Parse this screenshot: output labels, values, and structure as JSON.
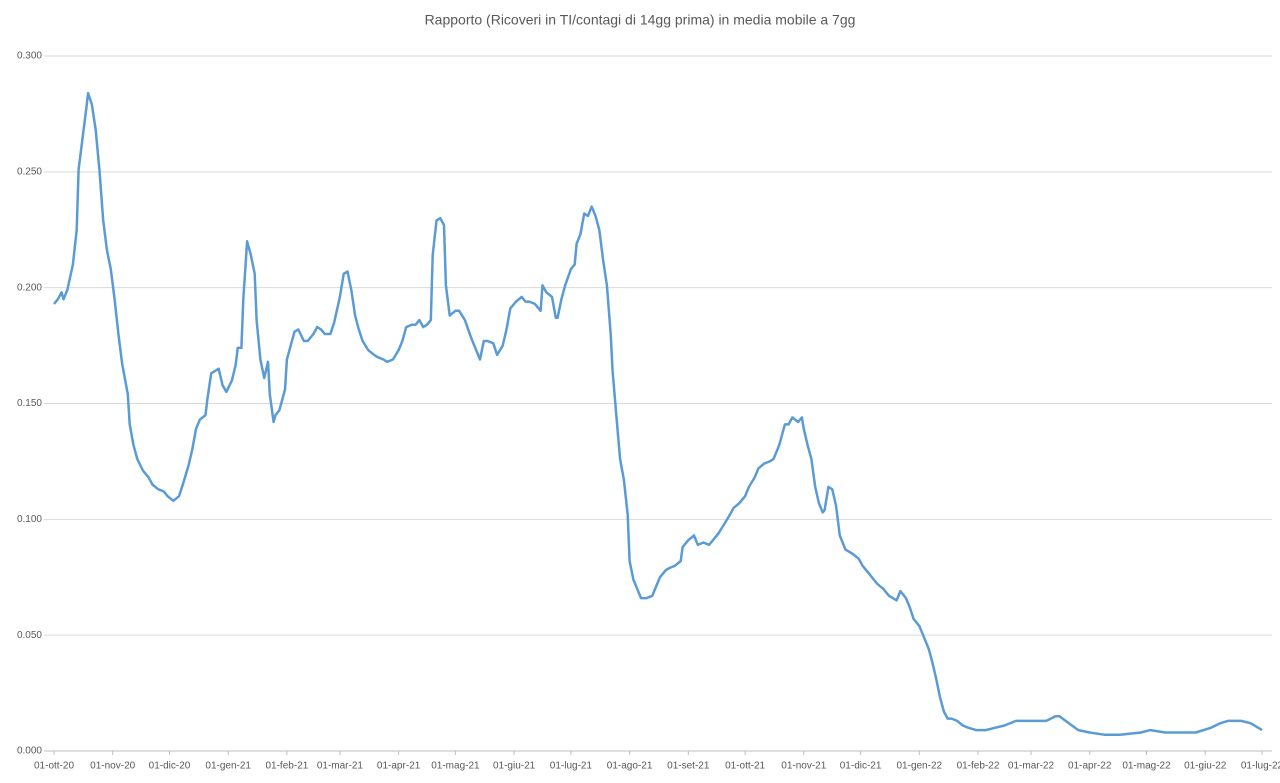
{
  "chart_data": {
    "type": "line",
    "title": "Rapporto (Ricoveri in TI/contagi di 14gg prima) in media mobile a 7gg",
    "x": [
      "2020-10-01",
      "2020-10-03",
      "2020-10-05",
      "2020-10-06",
      "2020-10-08",
      "2020-10-11",
      "2020-10-13",
      "2020-10-14",
      "2020-10-16",
      "2020-10-18",
      "2020-10-19",
      "2020-10-21",
      "2020-10-23",
      "2020-10-25",
      "2020-10-27",
      "2020-10-29",
      "2020-10-31",
      "2020-11-02",
      "2020-11-04",
      "2020-11-06",
      "2020-11-09",
      "2020-11-10",
      "2020-11-12",
      "2020-11-14",
      "2020-11-17",
      "2020-11-20",
      "2020-11-22",
      "2020-11-25",
      "2020-11-28",
      "2020-11-30",
      "2020-12-03",
      "2020-12-06",
      "2020-12-08",
      "2020-12-11",
      "2020-12-13",
      "2020-12-15",
      "2020-12-17",
      "2020-12-20",
      "2020-12-21",
      "2020-12-23",
      "2020-12-25",
      "2020-12-27",
      "2020-12-29",
      "2020-12-31",
      "2021-01-03",
      "2021-01-05",
      "2021-01-06",
      "2021-01-08",
      "2021-01-09",
      "2021-01-11",
      "2021-01-13",
      "2021-01-15",
      "2021-01-16",
      "2021-01-18",
      "2021-01-20",
      "2021-01-22",
      "2021-01-23",
      "2021-01-25",
      "2021-01-26",
      "2021-01-28",
      "2021-01-31",
      "2021-02-01",
      "2021-02-03",
      "2021-02-05",
      "2021-02-07",
      "2021-02-10",
      "2021-02-12",
      "2021-02-15",
      "2021-02-17",
      "2021-02-19",
      "2021-02-21",
      "2021-02-24",
      "2021-02-26",
      "2021-03-01",
      "2021-03-03",
      "2021-03-05",
      "2021-03-07",
      "2021-03-09",
      "2021-03-11",
      "2021-03-13",
      "2021-03-16",
      "2021-03-19",
      "2021-03-21",
      "2021-03-24",
      "2021-03-26",
      "2021-03-29",
      "2021-04-01",
      "2021-04-03",
      "2021-04-05",
      "2021-04-08",
      "2021-04-10",
      "2021-04-12",
      "2021-04-14",
      "2021-04-16",
      "2021-04-18",
      "2021-04-19",
      "2021-04-21",
      "2021-04-23",
      "2021-04-25",
      "2021-04-26",
      "2021-04-28",
      "2021-05-01",
      "2021-05-03",
      "2021-05-06",
      "2021-05-09",
      "2021-05-11",
      "2021-05-14",
      "2021-05-16",
      "2021-05-18",
      "2021-05-21",
      "2021-05-23",
      "2021-05-26",
      "2021-05-28",
      "2021-05-30",
      "2021-06-02",
      "2021-06-05",
      "2021-06-07",
      "2021-06-09",
      "2021-06-12",
      "2021-06-15",
      "2021-06-16",
      "2021-06-18",
      "2021-06-21",
      "2021-06-23",
      "2021-06-24",
      "2021-06-26",
      "2021-06-28",
      "2021-07-01",
      "2021-07-03",
      "2021-07-04",
      "2021-07-06",
      "2021-07-08",
      "2021-07-10",
      "2021-07-12",
      "2021-07-14",
      "2021-07-16",
      "2021-07-18",
      "2021-07-20",
      "2021-07-22",
      "2021-07-23",
      "2021-07-25",
      "2021-07-27",
      "2021-07-29",
      "2021-07-31",
      "2021-08-01",
      "2021-08-03",
      "2021-08-05",
      "2021-08-07",
      "2021-08-10",
      "2021-08-13",
      "2021-08-15",
      "2021-08-17",
      "2021-08-20",
      "2021-08-22",
      "2021-08-25",
      "2021-08-28",
      "2021-08-29",
      "2021-09-01",
      "2021-09-04",
      "2021-09-06",
      "2021-09-09",
      "2021-09-12",
      "2021-09-15",
      "2021-09-17",
      "2021-09-20",
      "2021-09-23",
      "2021-09-25",
      "2021-09-28",
      "2021-10-01",
      "2021-10-03",
      "2021-10-06",
      "2021-10-08",
      "2021-10-11",
      "2021-10-14",
      "2021-10-16",
      "2021-10-19",
      "2021-10-21",
      "2021-10-22",
      "2021-10-24",
      "2021-10-26",
      "2021-10-29",
      "2021-10-31",
      "2021-11-01",
      "2021-11-03",
      "2021-11-05",
      "2021-11-07",
      "2021-11-09",
      "2021-11-11",
      "2021-11-12",
      "2021-11-14",
      "2021-11-16",
      "2021-11-18",
      "2021-11-20",
      "2021-11-23",
      "2021-11-27",
      "2021-11-30",
      "2021-12-02",
      "2021-12-05",
      "2021-12-08",
      "2021-12-10",
      "2021-12-13",
      "2021-12-16",
      "2021-12-18",
      "2021-12-20",
      "2021-12-22",
      "2021-12-25",
      "2021-12-27",
      "2021-12-29",
      "2022-01-01",
      "2022-01-03",
      "2022-01-06",
      "2022-01-08",
      "2022-01-10",
      "2022-01-12",
      "2022-01-14",
      "2022-01-16",
      "2022-01-18",
      "2022-01-21",
      "2022-01-24",
      "2022-01-27",
      "2022-01-31",
      "2022-02-05",
      "2022-02-10",
      "2022-02-15",
      "2022-02-21",
      "2022-03-01",
      "2022-03-09",
      "2022-03-14",
      "2022-03-16",
      "2022-03-21",
      "2022-03-26",
      "2022-04-01",
      "2022-04-09",
      "2022-04-17",
      "2022-04-28",
      "2022-05-03",
      "2022-05-11",
      "2022-05-19",
      "2022-05-27",
      "2022-06-04",
      "2022-06-09",
      "2022-06-13",
      "2022-06-20",
      "2022-06-25",
      "2022-07-01"
    ],
    "values": [
      0.193,
      0.195,
      0.198,
      0.195,
      0.199,
      0.21,
      0.225,
      0.251,
      0.264,
      0.277,
      0.284,
      0.279,
      0.268,
      0.251,
      0.229,
      0.216,
      0.208,
      0.195,
      0.18,
      0.167,
      0.154,
      0.141,
      0.132,
      0.126,
      0.121,
      0.118,
      0.115,
      0.113,
      0.112,
      0.11,
      0.108,
      0.11,
      0.115,
      0.123,
      0.13,
      0.139,
      0.143,
      0.145,
      0.152,
      0.163,
      0.164,
      0.165,
      0.158,
      0.155,
      0.16,
      0.167,
      0.174,
      0.174,
      0.195,
      0.22,
      0.214,
      0.206,
      0.186,
      0.169,
      0.161,
      0.168,
      0.154,
      0.142,
      0.145,
      0.147,
      0.156,
      0.169,
      0.175,
      0.181,
      0.182,
      0.177,
      0.177,
      0.18,
      0.183,
      0.182,
      0.18,
      0.18,
      0.185,
      0.196,
      0.206,
      0.207,
      0.199,
      0.188,
      0.182,
      0.177,
      0.173,
      0.171,
      0.17,
      0.169,
      0.168,
      0.169,
      0.173,
      0.177,
      0.183,
      0.184,
      0.184,
      0.186,
      0.183,
      0.184,
      0.186,
      0.214,
      0.229,
      0.23,
      0.227,
      0.201,
      0.188,
      0.19,
      0.19,
      0.186,
      0.179,
      0.175,
      0.169,
      0.177,
      0.177,
      0.176,
      0.171,
      0.175,
      0.182,
      0.191,
      0.194,
      0.196,
      0.194,
      0.194,
      0.193,
      0.19,
      0.201,
      0.198,
      0.196,
      0.187,
      0.187,
      0.195,
      0.201,
      0.208,
      0.21,
      0.219,
      0.223,
      0.232,
      0.231,
      0.235,
      0.231,
      0.225,
      0.212,
      0.201,
      0.18,
      0.164,
      0.145,
      0.126,
      0.117,
      0.102,
      0.082,
      0.074,
      0.07,
      0.066,
      0.066,
      0.067,
      0.071,
      0.075,
      0.078,
      0.079,
      0.08,
      0.082,
      0.088,
      0.091,
      0.093,
      0.089,
      0.09,
      0.089,
      0.092,
      0.094,
      0.098,
      0.102,
      0.105,
      0.107,
      0.11,
      0.114,
      0.118,
      0.122,
      0.124,
      0.125,
      0.126,
      0.132,
      0.138,
      0.141,
      0.141,
      0.144,
      0.142,
      0.144,
      0.139,
      0.132,
      0.126,
      0.114,
      0.107,
      0.103,
      0.104,
      0.114,
      0.113,
      0.106,
      0.093,
      0.087,
      0.085,
      0.083,
      0.08,
      0.077,
      0.074,
      0.072,
      0.07,
      0.067,
      0.066,
      0.065,
      0.069,
      0.066,
      0.062,
      0.057,
      0.054,
      0.05,
      0.044,
      0.038,
      0.031,
      0.023,
      0.017,
      0.014,
      0.014,
      0.013,
      0.011,
      0.01,
      0.009,
      0.009,
      0.01,
      0.011,
      0.013,
      0.013,
      0.013,
      0.015,
      0.015,
      0.012,
      0.009,
      0.008,
      0.007,
      0.007,
      0.008,
      0.009,
      0.008,
      0.008,
      0.008,
      0.01,
      0.012,
      0.013,
      0.013,
      0.012,
      0.009
    ],
    "color": "#5b9bd5",
    "xlim": [
      "2020-10-01",
      "2022-07-01"
    ],
    "xticks": [
      {
        "value": "2020-10-01",
        "label": "01-ott-20"
      },
      {
        "value": "2020-11-01",
        "label": "01-nov-20"
      },
      {
        "value": "2020-12-01",
        "label": "01-dic-20"
      },
      {
        "value": "2021-01-01",
        "label": "01-gen-21"
      },
      {
        "value": "2021-02-01",
        "label": "01-feb-21"
      },
      {
        "value": "2021-03-01",
        "label": "01-mar-21"
      },
      {
        "value": "2021-04-01",
        "label": "01-apr-21"
      },
      {
        "value": "2021-05-01",
        "label": "01-mag-21"
      },
      {
        "value": "2021-06-01",
        "label": "01-giu-21"
      },
      {
        "value": "2021-07-01",
        "label": "01-lug-21"
      },
      {
        "value": "2021-08-01",
        "label": "01-ago-21"
      },
      {
        "value": "2021-09-01",
        "label": "01-set-21"
      },
      {
        "value": "2021-10-01",
        "label": "01-ott-21"
      },
      {
        "value": "2021-11-01",
        "label": "01-nov-21"
      },
      {
        "value": "2021-12-01",
        "label": "01-dic-21"
      },
      {
        "value": "2022-01-01",
        "label": "01-gen-22"
      },
      {
        "value": "2022-02-01",
        "label": "01-feb-22"
      },
      {
        "value": "2022-03-01",
        "label": "01-mar-22"
      },
      {
        "value": "2022-04-01",
        "label": "01-apr-22"
      },
      {
        "value": "2022-05-01",
        "label": "01-mag-22"
      },
      {
        "value": "2022-06-01",
        "label": "01-giu-22"
      },
      {
        "value": "2022-07-01",
        "label": "01-lug-22"
      }
    ],
    "ylim": [
      0,
      0.3
    ],
    "yticks": [
      {
        "value": 0,
        "label": "0.000"
      },
      {
        "value": 0.05,
        "label": "0.050"
      },
      {
        "value": 0.1,
        "label": "0.100"
      },
      {
        "value": 0.15,
        "label": "0.150"
      },
      {
        "value": 0.2,
        "label": "0.200"
      },
      {
        "value": 0.25,
        "label": "0.250"
      },
      {
        "value": 0.3,
        "label": "0.300"
      }
    ],
    "grid": true
  }
}
